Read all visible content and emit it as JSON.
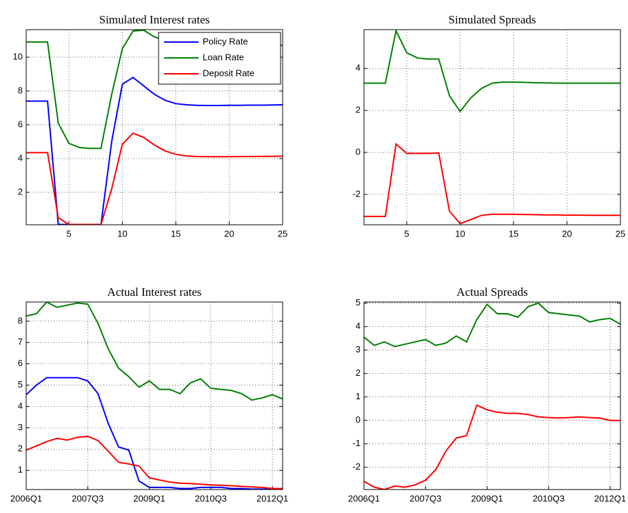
{
  "chart_data": [
    {
      "type": "line",
      "title": "Simulated Interest rates",
      "x": [
        1,
        2,
        3,
        4,
        5,
        6,
        7,
        8,
        9,
        10,
        11,
        12,
        13,
        14,
        15,
        16,
        17,
        18,
        19,
        20,
        21,
        22,
        23,
        24,
        25
      ],
      "xlim": [
        1,
        25
      ],
      "xticks": [
        5,
        10,
        15,
        20,
        25
      ],
      "ylim": [
        0.08,
        11.63
      ],
      "yticks": [
        2,
        4,
        6,
        8,
        10
      ],
      "grid": true,
      "legend": "upper right",
      "series": [
        {
          "name": "Policy Rate",
          "color": "#0000ff",
          "values": [
            7.4,
            7.4,
            7.4,
            0.1,
            0.1,
            0.1,
            0.1,
            0.1,
            5.0,
            8.4,
            8.8,
            8.3,
            7.8,
            7.45,
            7.25,
            7.18,
            7.15,
            7.14,
            7.14,
            7.15,
            7.15,
            7.16,
            7.16,
            7.17,
            7.18
          ]
        },
        {
          "name": "Loan Rate",
          "color": "#008000",
          "values": [
            10.9,
            10.9,
            10.9,
            6.1,
            4.9,
            4.65,
            4.6,
            4.6,
            7.8,
            10.5,
            11.55,
            11.6,
            11.2,
            11.0,
            10.85,
            10.8,
            10.78,
            10.76,
            10.75,
            10.74,
            10.73,
            10.72,
            10.71,
            10.7,
            10.7
          ]
        },
        {
          "name": "Deposit Rate",
          "color": "#ff0000",
          "values": [
            4.35,
            4.35,
            4.35,
            0.5,
            0.1,
            0.1,
            0.1,
            0.1,
            2.2,
            4.85,
            5.5,
            5.25,
            4.8,
            4.45,
            4.25,
            4.15,
            4.12,
            4.11,
            4.11,
            4.11,
            4.12,
            4.12,
            4.13,
            4.13,
            4.14
          ]
        }
      ]
    },
    {
      "type": "line",
      "title": "Simulated Spreads",
      "x": [
        1,
        2,
        3,
        4,
        5,
        6,
        7,
        8,
        9,
        10,
        11,
        12,
        13,
        14,
        15,
        16,
        17,
        18,
        19,
        20,
        21,
        22,
        23,
        24,
        25
      ],
      "xlim": [
        1,
        25
      ],
      "xticks": [
        5,
        10,
        15,
        20,
        25
      ],
      "ylim": [
        -3.45,
        5.85
      ],
      "yticks": [
        -2,
        0,
        2,
        4
      ],
      "grid": true,
      "series": [
        {
          "color": "#008000",
          "values": [
            3.3,
            3.3,
            3.3,
            5.8,
            4.75,
            4.5,
            4.45,
            4.45,
            2.7,
            1.95,
            2.6,
            3.05,
            3.3,
            3.35,
            3.35,
            3.34,
            3.32,
            3.31,
            3.3,
            3.3,
            3.3,
            3.3,
            3.3,
            3.3,
            3.3
          ]
        },
        {
          "color": "#ff0000",
          "values": [
            -3.05,
            -3.05,
            -3.05,
            0.4,
            -0.05,
            -0.05,
            -0.05,
            -0.03,
            -2.8,
            -3.4,
            -3.2,
            -3.0,
            -2.95,
            -2.95,
            -2.95,
            -2.96,
            -2.97,
            -2.98,
            -2.98,
            -2.99,
            -2.99,
            -3.0,
            -3.0,
            -3.0,
            -3.0
          ]
        }
      ]
    },
    {
      "type": "line",
      "title": "Actual Interest rates",
      "categories": [
        "2006Q1",
        null,
        null,
        null,
        null,
        null,
        "2007Q3",
        null,
        null,
        null,
        null,
        null,
        "2009Q1",
        null,
        null,
        null,
        null,
        null,
        "2010Q3",
        null,
        null,
        null,
        null,
        null,
        "2012Q1",
        null
      ],
      "ylim": [
        0.1,
        8.9
      ],
      "yticks": [
        1,
        2,
        3,
        4,
        5,
        6,
        7,
        8
      ],
      "grid": true,
      "series": [
        {
          "color": "#0000ff",
          "values": [
            4.55,
            5.0,
            5.35,
            5.35,
            5.35,
            5.35,
            5.2,
            4.6,
            3.2,
            2.1,
            1.95,
            0.5,
            0.2,
            0.2,
            0.2,
            0.15,
            0.15,
            0.2,
            0.2,
            0.2,
            0.15,
            0.15,
            0.12,
            0.12,
            0.12,
            0.12
          ]
        },
        {
          "color": "#008000",
          "values": [
            8.25,
            8.35,
            8.9,
            8.65,
            8.75,
            8.85,
            8.8,
            7.9,
            6.7,
            5.8,
            5.4,
            4.9,
            5.2,
            4.8,
            4.8,
            4.6,
            5.1,
            5.3,
            4.85,
            4.8,
            4.75,
            4.6,
            4.3,
            4.4,
            4.55,
            4.35
          ]
        },
        {
          "color": "#ff0000",
          "values": [
            1.95,
            2.15,
            2.35,
            2.5,
            2.42,
            2.55,
            2.6,
            2.4,
            1.9,
            1.38,
            1.3,
            1.2,
            0.65,
            0.55,
            0.45,
            0.4,
            0.38,
            0.35,
            0.32,
            0.3,
            0.28,
            0.25,
            0.22,
            0.2,
            0.15,
            0.15
          ]
        }
      ]
    },
    {
      "type": "line",
      "title": "Actual Spreads",
      "categories": [
        "2006Q1",
        null,
        null,
        null,
        null,
        null,
        "2007Q3",
        null,
        null,
        null,
        null,
        null,
        "2009Q1",
        null,
        null,
        null,
        null,
        null,
        "2010Q3",
        null,
        null,
        null,
        null,
        null,
        "2012Q1",
        null
      ],
      "ylim": [
        -2.95,
        5.05
      ],
      "yticks": [
        -2,
        -1,
        0,
        1,
        2,
        3,
        4,
        5
      ],
      "grid": true,
      "series": [
        {
          "color": "#008000",
          "values": [
            3.55,
            3.2,
            3.35,
            3.15,
            3.25,
            3.35,
            3.45,
            3.2,
            3.3,
            3.6,
            3.35,
            4.3,
            4.95,
            4.55,
            4.55,
            4.4,
            4.85,
            5.0,
            4.6,
            4.55,
            4.5,
            4.45,
            4.2,
            4.3,
            4.35,
            4.1
          ]
        },
        {
          "color": "#ff0000",
          "values": [
            -2.6,
            -2.85,
            -2.95,
            -2.8,
            -2.85,
            -2.75,
            -2.55,
            -2.1,
            -1.3,
            -0.75,
            -0.65,
            0.65,
            0.45,
            0.35,
            0.3,
            0.3,
            0.25,
            0.15,
            0.12,
            0.1,
            0.12,
            0.15,
            0.12,
            0.1,
            0.0,
            0.0
          ]
        }
      ]
    }
  ]
}
